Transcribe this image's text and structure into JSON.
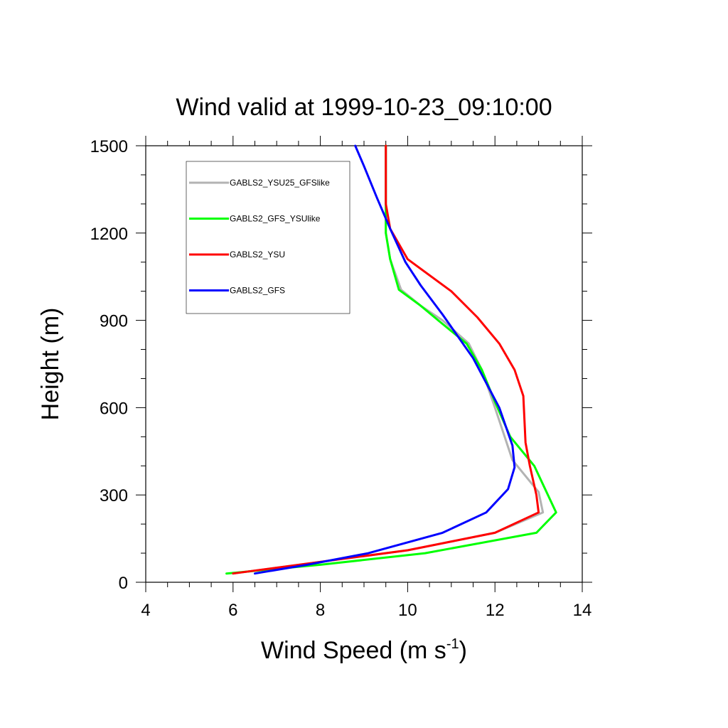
{
  "chart_data": {
    "type": "line",
    "title": "Wind valid at 1999-10-23_09:10:00",
    "xlabel": "Wind Speed (m s",
    "xlabel_superscript": "-1",
    "xlabel_suffix": ")",
    "ylabel": "Height (m)",
    "xlim": [
      4,
      14
    ],
    "ylim": [
      0,
      1500
    ],
    "xticks": [
      4,
      6,
      8,
      10,
      12,
      14
    ],
    "yticks": [
      0,
      300,
      600,
      900,
      1200,
      1500
    ],
    "x_minor_step": 0.5,
    "y_minor_step": 100,
    "grid": false,
    "legend_position": "top-left",
    "series": [
      {
        "name": "GABLS2_YSU25_GFSlike",
        "color": "#b3b3b3",
        "points": [
          [
            6.0,
            30
          ],
          [
            8.0,
            70
          ],
          [
            10.0,
            110
          ],
          [
            12.0,
            170
          ],
          [
            13.1,
            240
          ],
          [
            13.0,
            310
          ],
          [
            12.4,
            420
          ],
          [
            12.0,
            600
          ],
          [
            11.7,
            730
          ],
          [
            11.4,
            820
          ],
          [
            10.8,
            900
          ],
          [
            10.3,
            950
          ],
          [
            9.85,
            1005
          ],
          [
            9.6,
            1110
          ],
          [
            9.5,
            1200
          ],
          [
            9.5,
            1300
          ],
          [
            9.5,
            1500
          ]
        ]
      },
      {
        "name": "GABLS2_GFS_YSUlike",
        "color": "#00ff00",
        "points": [
          [
            5.85,
            30
          ],
          [
            8.0,
            60
          ],
          [
            10.4,
            100
          ],
          [
            12.95,
            170
          ],
          [
            13.4,
            240
          ],
          [
            12.9,
            400
          ],
          [
            12.35,
            500
          ],
          [
            12.0,
            620
          ],
          [
            11.7,
            730
          ],
          [
            11.35,
            820
          ],
          [
            10.7,
            900
          ],
          [
            10.3,
            950
          ],
          [
            9.8,
            1005
          ],
          [
            9.6,
            1110
          ],
          [
            9.5,
            1200
          ],
          [
            9.5,
            1300
          ],
          [
            9.5,
            1500
          ]
        ]
      },
      {
        "name": "GABLS2_YSU",
        "color": "#ff0000",
        "points": [
          [
            6.0,
            30
          ],
          [
            8.0,
            70
          ],
          [
            10.0,
            110
          ],
          [
            12.0,
            170
          ],
          [
            13.0,
            240
          ],
          [
            12.95,
            300
          ],
          [
            12.8,
            400
          ],
          [
            12.7,
            480
          ],
          [
            12.65,
            640
          ],
          [
            12.45,
            730
          ],
          [
            12.1,
            820
          ],
          [
            11.6,
            910
          ],
          [
            11.0,
            1000
          ],
          [
            10.0,
            1110
          ],
          [
            9.6,
            1215
          ],
          [
            9.5,
            1300
          ],
          [
            9.5,
            1500
          ]
        ]
      },
      {
        "name": "GABLS2_GFS",
        "color": "#0000ff",
        "points": [
          [
            6.5,
            30
          ],
          [
            7.7,
            60
          ],
          [
            9.1,
            100
          ],
          [
            10.8,
            170
          ],
          [
            11.8,
            240
          ],
          [
            12.3,
            320
          ],
          [
            12.45,
            395
          ],
          [
            12.4,
            470
          ],
          [
            12.1,
            600
          ],
          [
            11.5,
            770
          ],
          [
            10.8,
            920
          ],
          [
            10.3,
            1020
          ],
          [
            9.95,
            1100
          ],
          [
            9.6,
            1215
          ],
          [
            9.3,
            1320
          ],
          [
            9.0,
            1430
          ],
          [
            8.8,
            1500
          ]
        ]
      }
    ]
  }
}
